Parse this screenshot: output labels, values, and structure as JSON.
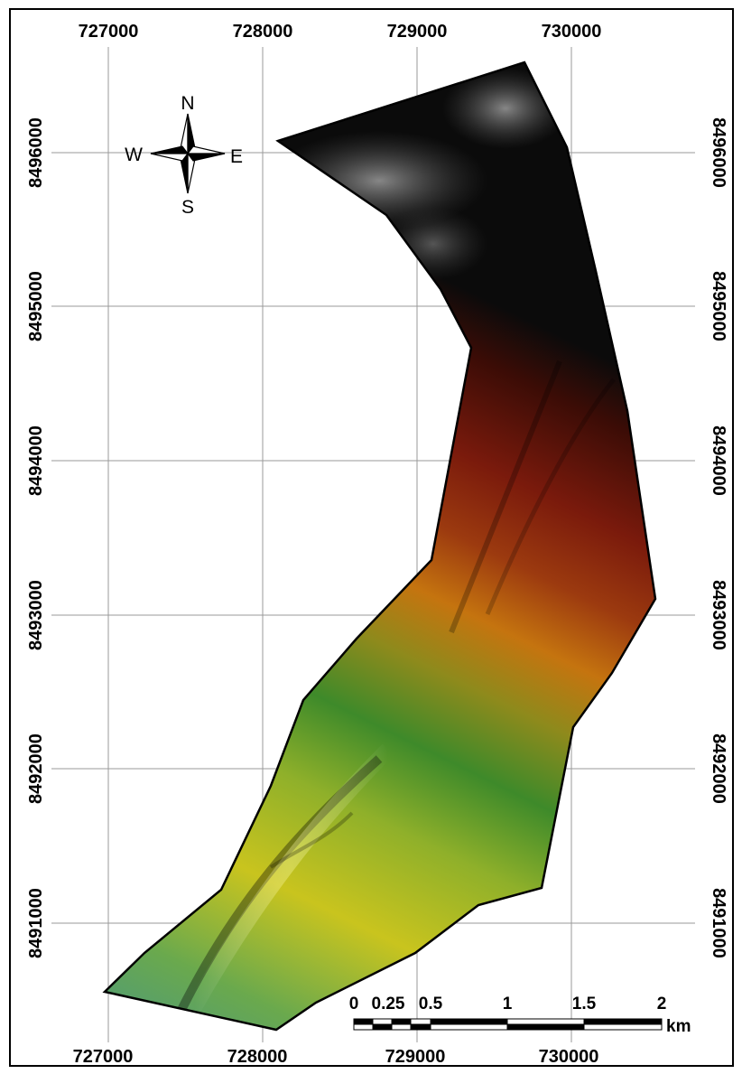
{
  "map": {
    "x_ticks": [
      "727000",
      "728000",
      "729000",
      "730000"
    ],
    "y_ticks": [
      "8496000",
      "8495000",
      "8494000",
      "8493000",
      "8492000",
      "8491000"
    ]
  },
  "compass": {
    "north": "N",
    "south": "S",
    "east": "E",
    "west": "W"
  },
  "scale_bar": {
    "labels": [
      "0",
      "0.25",
      "0.5",
      "1",
      "1.5",
      "2"
    ],
    "unit": "km"
  },
  "colors": {
    "low_elevation": "#4e9a79",
    "mid_low": "#c9c41e",
    "mid": "#3e8a2a",
    "mid_high": "#c5740f",
    "high": "#7a1a0c",
    "summit": "#0b0b0b",
    "gray_texture": "#9a9a9a"
  }
}
